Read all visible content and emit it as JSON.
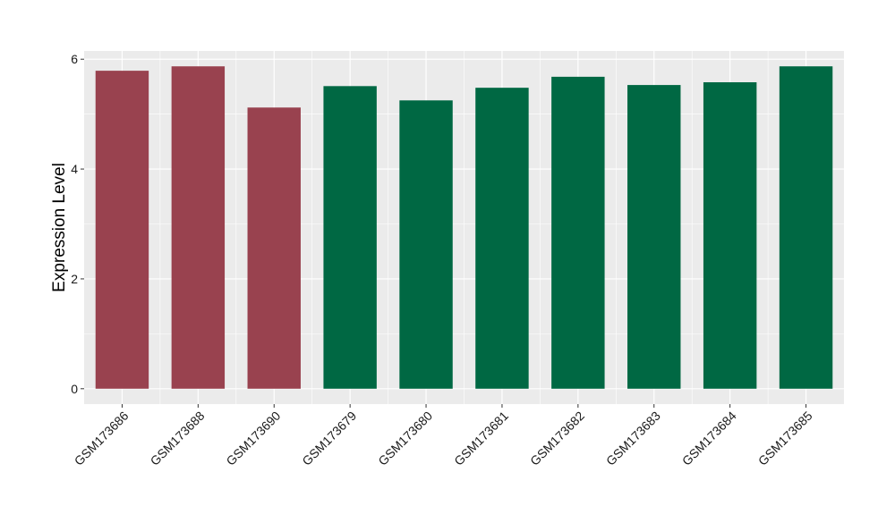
{
  "chart_data": {
    "type": "bar",
    "title": "",
    "xlabel": "",
    "ylabel": "Expression Level",
    "categories": [
      "GSM173686",
      "GSM173688",
      "GSM173690",
      "GSM173679",
      "GSM173680",
      "GSM173681",
      "GSM173682",
      "GSM173683",
      "GSM173684",
      "GSM173685"
    ],
    "values": [
      5.79,
      5.87,
      5.12,
      5.51,
      5.25,
      5.48,
      5.68,
      5.53,
      5.58,
      5.87
    ],
    "bar_colors": [
      "#99424f",
      "#99424f",
      "#99424f",
      "#006843",
      "#006843",
      "#006843",
      "#006843",
      "#006843",
      "#006843",
      "#006843"
    ],
    "ylim": [
      -0.28,
      6.15
    ],
    "yticks": [
      0,
      2,
      4,
      6
    ],
    "grid": true,
    "legend": "none",
    "panel_background": "#ebebeb",
    "grid_color": "#ffffff"
  }
}
